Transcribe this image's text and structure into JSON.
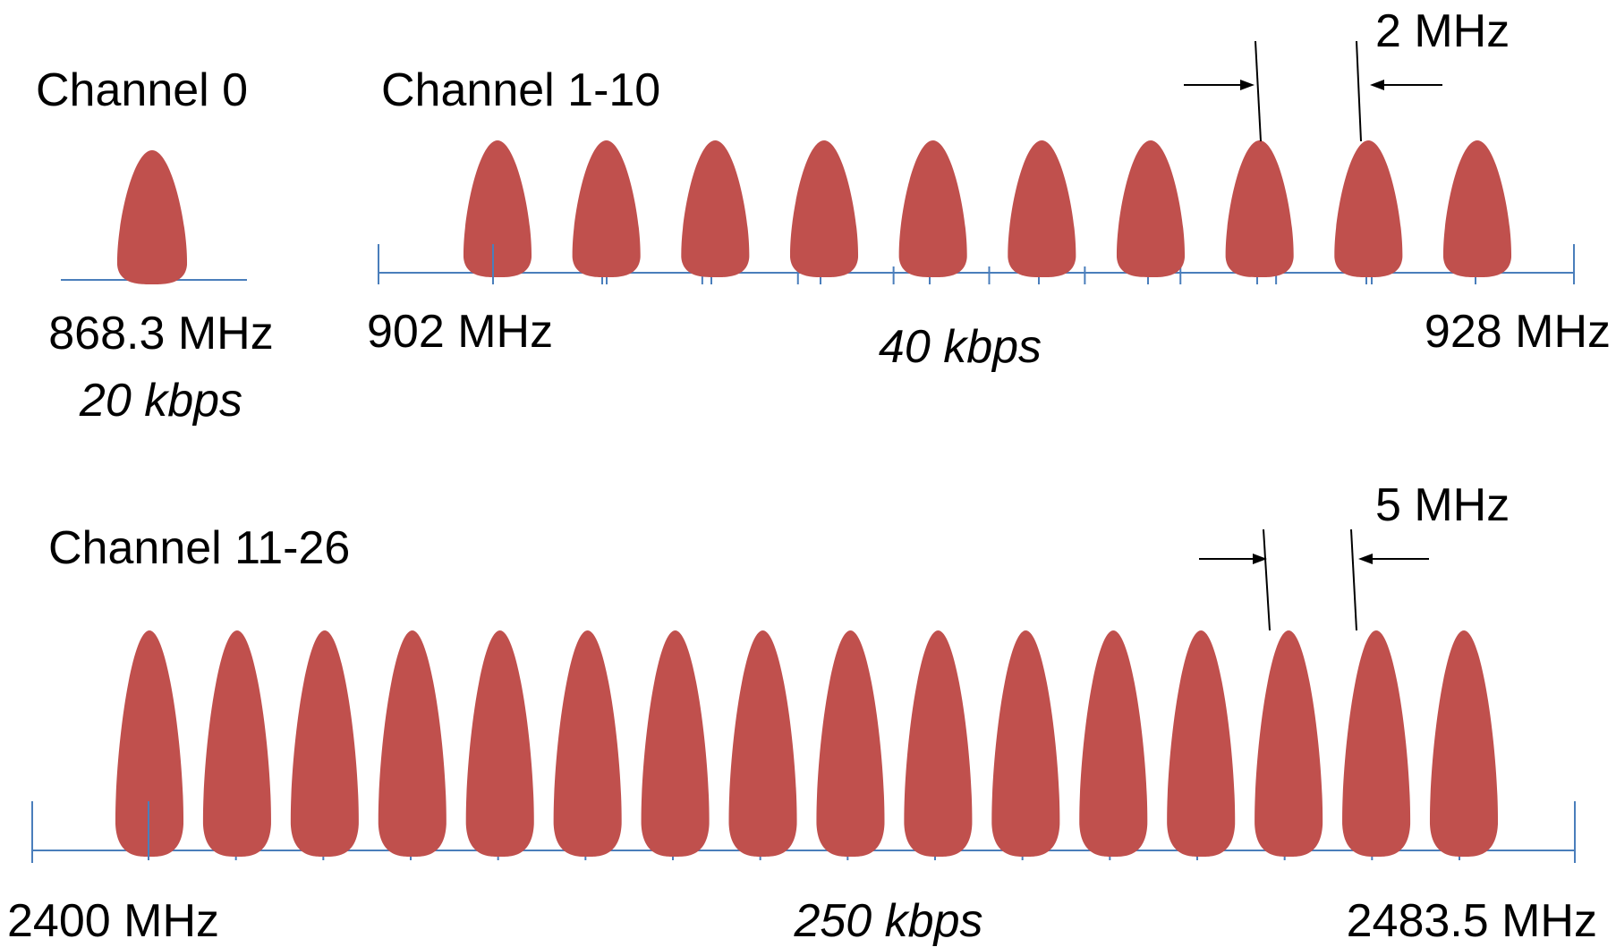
{
  "colors": {
    "lobe": "#c0504d",
    "axis": "#4a7ebb",
    "annotation": "#000000",
    "background": "#ffffff"
  },
  "band0": {
    "title": "Channel 0",
    "frequency": "868.3 MHz",
    "rate": "20 kbps",
    "channel_count": 1
  },
  "band1": {
    "title": "Channel 1-10",
    "start": "902 MHz",
    "end": "928 MHz",
    "rate": "40 kbps",
    "spacing": "2 MHz",
    "channel_count": 10
  },
  "band2": {
    "title": "Channel 11-26",
    "start": "2400 MHz",
    "end": "2483.5 MHz",
    "rate": "250 kbps",
    "spacing": "5 MHz",
    "channel_count": 16
  }
}
